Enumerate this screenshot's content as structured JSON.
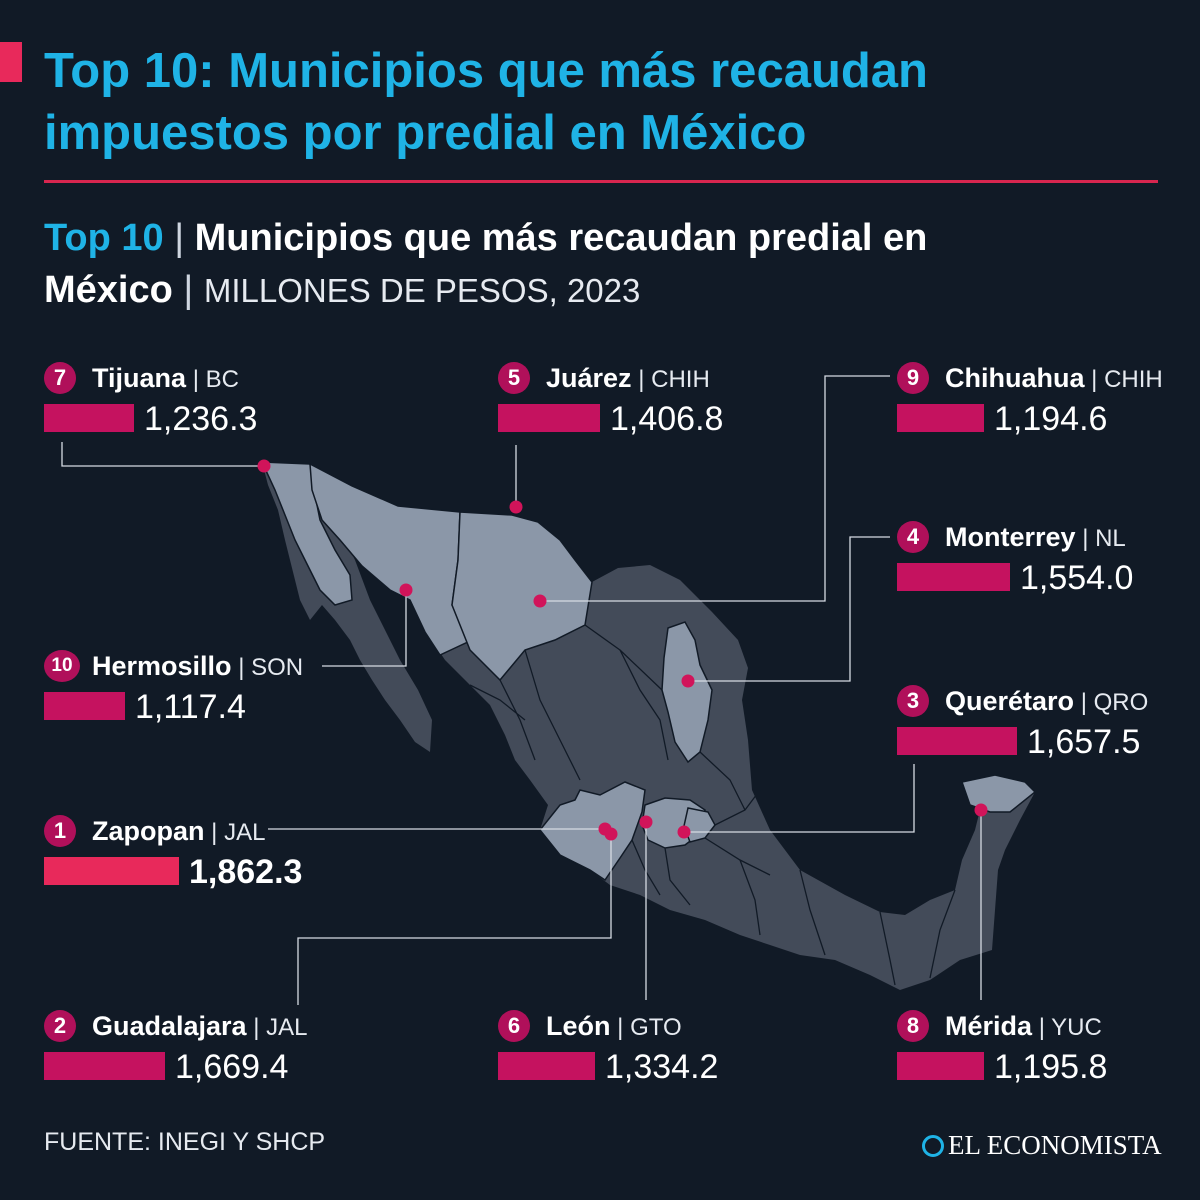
{
  "title": "Top 10: Municipios que más recaudan impuestos por predial en México",
  "subtitle": {
    "lead": "Top 10",
    "text_part1": "Municipios que más recaudan predial en",
    "text_part2": "México",
    "units": "MILLONES DE PESOS, 2023"
  },
  "colors": {
    "background": "#111a26",
    "accent_blue": "#1fb3e6",
    "accent_red": "#e8295b",
    "bar": "#c5125f",
    "highlight_states": "#8b97a8",
    "other_states": "#434b59"
  },
  "chart_data": {
    "type": "bar",
    "title": "Municipios que más recaudan predial en México",
    "units": "MILLONES DE PESOS, 2023",
    "items": [
      {
        "rank": "1",
        "municipio": "Zapopan",
        "estado": "JAL",
        "value": 1862.3,
        "label": "1,862.3"
      },
      {
        "rank": "2",
        "municipio": "Guadalajara",
        "estado": "JAL",
        "value": 1669.4,
        "label": "1,669.4"
      },
      {
        "rank": "3",
        "municipio": "Querétaro",
        "estado": "QRO",
        "value": 1657.5,
        "label": "1,657.5"
      },
      {
        "rank": "4",
        "municipio": "Monterrey",
        "estado": "NL",
        "value": 1554.0,
        "label": "1,554.0"
      },
      {
        "rank": "5",
        "municipio": "Juárez",
        "estado": "CHIH",
        "value": 1406.8,
        "label": "1,406.8"
      },
      {
        "rank": "6",
        "municipio": "León",
        "estado": "GTO",
        "value": 1334.2,
        "label": "1,334.2"
      },
      {
        "rank": "7",
        "municipio": "Tijuana",
        "estado": "BC",
        "value": 1236.3,
        "label": "1,236.3"
      },
      {
        "rank": "8",
        "municipio": "Mérida",
        "estado": "YUC",
        "value": 1195.8,
        "label": "1,195.8"
      },
      {
        "rank": "9",
        "municipio": "Chihuahua",
        "estado": "CHIH",
        "value": 1194.6,
        "label": "1,194.6"
      },
      {
        "rank": "10",
        "municipio": "Hermosillo",
        "estado": "SON",
        "value": 1117.4,
        "label": "1,117.4"
      }
    ],
    "highlighted_states": [
      "BC",
      "SON",
      "CHIH",
      "NL",
      "JAL",
      "GTO",
      "QRO",
      "YUC"
    ]
  },
  "footer": {
    "source": "FUENTE: INEGI Y SHCP",
    "logo": "EL ECONOMISTA"
  }
}
